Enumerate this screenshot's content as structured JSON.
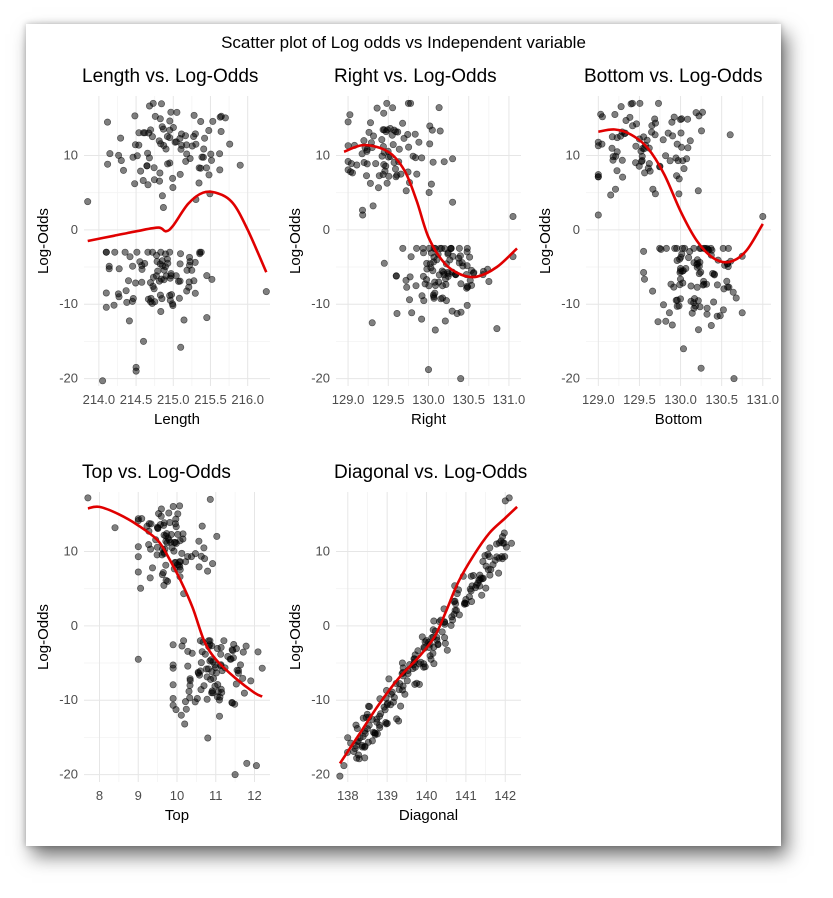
{
  "figure": {
    "title": "Scatter plot of Log odds vs Independent variable"
  },
  "chart_data": [
    {
      "type": "scatter",
      "title": "Length vs. Log-Odds",
      "xlabel": "Length",
      "ylabel": "Log-Odds",
      "xlim": [
        213.8,
        216.3
      ],
      "ylim": [
        -21,
        18
      ],
      "xticks": [
        214.0,
        214.5,
        215.0,
        215.5,
        216.0
      ],
      "xtick_labels": [
        "214.0",
        "214.5",
        "215.0",
        "215.5",
        "216.0"
      ],
      "yticks": [
        -20,
        -10,
        0,
        10
      ],
      "ytick_labels": [
        "-20",
        "-10",
        "0",
        "10"
      ],
      "smooth": [
        [
          213.85,
          -1.5
        ],
        [
          214.2,
          -0.8
        ],
        [
          214.5,
          -0.2
        ],
        [
          214.8,
          0.3
        ],
        [
          214.9,
          -0.2
        ],
        [
          215.0,
          0.6
        ],
        [
          215.2,
          3.5
        ],
        [
          215.4,
          5.0
        ],
        [
          215.6,
          4.9
        ],
        [
          215.8,
          3.6
        ],
        [
          216.0,
          0.0
        ],
        [
          216.25,
          -5.7
        ]
      ],
      "points": {
        "upper": {
          "x_range": [
            214.1,
            215.9
          ],
          "y_range": [
            3,
            17
          ],
          "n": 95,
          "x_center": 215.0,
          "y_center": 10.5
        },
        "lower": {
          "x_range": [
            214.1,
            215.7
          ],
          "y_range": [
            -16,
            -3
          ],
          "n": 90,
          "x_center": 214.8,
          "y_center": -6
        },
        "extra": [
          [
            213.85,
            3.8
          ],
          [
            214.05,
            -20.3
          ],
          [
            214.5,
            -18.5
          ],
          [
            214.5,
            -19
          ],
          [
            216.25,
            -8.3
          ],
          [
            215.1,
            -15.8
          ],
          [
            214.6,
            -15
          ],
          [
            215.45,
            -11.8
          ]
        ]
      }
    },
    {
      "type": "scatter",
      "title": "Right vs. Log-Odds",
      "xlabel": "Right",
      "ylabel": "Log-Odds",
      "xlim": [
        128.85,
        131.15
      ],
      "ylim": [
        -21,
        18
      ],
      "xticks": [
        129.0,
        129.5,
        130.0,
        130.5,
        131.0
      ],
      "xtick_labels": [
        "129.0",
        "129.5",
        "130.0",
        "130.5",
        "131.0"
      ],
      "yticks": [
        -20,
        -10,
        0,
        10
      ],
      "ytick_labels": [
        "-20",
        "-10",
        "0",
        "10"
      ],
      "smooth": [
        [
          128.95,
          10.5
        ],
        [
          129.2,
          11.4
        ],
        [
          129.5,
          10.5
        ],
        [
          129.7,
          8.0
        ],
        [
          129.85,
          4.0
        ],
        [
          130.0,
          -1.0
        ],
        [
          130.2,
          -4.5
        ],
        [
          130.4,
          -6.0
        ],
        [
          130.6,
          -6.3
        ],
        [
          130.85,
          -5.0
        ],
        [
          131.1,
          -2.5
        ]
      ],
      "points": {
        "upper": {
          "x_range": [
            129.0,
            130.3
          ],
          "y_range": [
            2,
            17
          ],
          "n": 90,
          "x_center": 129.5,
          "y_center": 10.5
        },
        "lower": {
          "x_range": [
            129.6,
            130.85
          ],
          "y_range": [
            -15,
            -2.5
          ],
          "n": 100,
          "x_center": 130.2,
          "y_center": -6
        },
        "extra": [
          [
            131.05,
            1.8
          ],
          [
            131.05,
            -3.6
          ],
          [
            130.4,
            -20
          ],
          [
            130.0,
            -18.8
          ],
          [
            129.3,
            -12.5
          ],
          [
            129.45,
            -4.5
          ]
        ]
      }
    },
    {
      "type": "scatter",
      "title": "Bottom vs. Log-Odds",
      "xlabel": "Bottom",
      "ylabel": "Log-Odds",
      "xlim": [
        128.85,
        131.1
      ],
      "ylim": [
        -21,
        18
      ],
      "xticks": [
        129.0,
        129.5,
        130.0,
        130.5,
        131.0
      ],
      "xtick_labels": [
        "129.0",
        "129.5",
        "130.0",
        "130.5",
        "131.0"
      ],
      "yticks": [
        -20,
        -10,
        0,
        10
      ],
      "ytick_labels": [
        "-20",
        "-10",
        "0",
        "10"
      ],
      "smooth": [
        [
          129.0,
          13.2
        ],
        [
          129.2,
          13.5
        ],
        [
          129.4,
          12.8
        ],
        [
          129.6,
          11.0
        ],
        [
          129.8,
          7.5
        ],
        [
          130.0,
          2.5
        ],
        [
          130.2,
          -1.5
        ],
        [
          130.4,
          -3.8
        ],
        [
          130.6,
          -4.3
        ],
        [
          130.8,
          -2.8
        ],
        [
          131.0,
          0.8
        ]
      ],
      "points": {
        "upper": {
          "x_range": [
            129.0,
            130.75
          ],
          "y_range": [
            2,
            17
          ],
          "n": 90,
          "x_center": 129.6,
          "y_center": 10.5
        },
        "lower": {
          "x_range": [
            129.55,
            130.75
          ],
          "y_range": [
            -16,
            -2.5
          ],
          "n": 100,
          "x_center": 130.2,
          "y_center": -6
        },
        "extra": [
          [
            129.05,
            15.2
          ],
          [
            130.65,
            -20
          ],
          [
            130.25,
            -18.6
          ],
          [
            131.0,
            1.8
          ],
          [
            129.9,
            -12.8
          ]
        ]
      }
    },
    {
      "type": "scatter",
      "title": "Top vs. Log-Odds",
      "xlabel": "Top",
      "ylabel": "Log-Odds",
      "xlim": [
        7.6,
        12.4
      ],
      "ylim": [
        -21,
        18
      ],
      "xticks": [
        8,
        9,
        10,
        11,
        12
      ],
      "xtick_labels": [
        "8",
        "9",
        "10",
        "11",
        "12"
      ],
      "yticks": [
        -20,
        -10,
        0,
        10
      ],
      "ytick_labels": [
        "-20",
        "-10",
        "0",
        "10"
      ],
      "smooth": [
        [
          7.7,
          15.8
        ],
        [
          8.0,
          16.0
        ],
        [
          8.5,
          15.0
        ],
        [
          9.0,
          13.5
        ],
        [
          9.5,
          11.5
        ],
        [
          9.8,
          9.0
        ],
        [
          10.1,
          6.0
        ],
        [
          10.4,
          2.5
        ],
        [
          10.7,
          -2.0
        ],
        [
          11.0,
          -4.5
        ],
        [
          11.5,
          -7.0
        ],
        [
          12.0,
          -9.0
        ],
        [
          12.2,
          -9.5
        ]
      ],
      "points": {
        "upper": {
          "x_range": [
            9.0,
            11.2
          ],
          "y_range": [
            2,
            17
          ],
          "n": 90,
          "x_center": 9.8,
          "y_center": 10.5
        },
        "lower": {
          "x_range": [
            9.9,
            12.2
          ],
          "y_range": [
            -16,
            -2
          ],
          "n": 95,
          "x_center": 10.9,
          "y_center": -6
        },
        "extra": [
          [
            7.7,
            17.2
          ],
          [
            8.4,
            13.2
          ],
          [
            9.0,
            -4.5
          ],
          [
            11.5,
            -20
          ],
          [
            11.8,
            -18.5
          ],
          [
            12.05,
            -18.8
          ],
          [
            10.2,
            -13.2
          ]
        ]
      }
    },
    {
      "type": "scatter",
      "title": "Diagonal vs. Log-Odds",
      "xlabel": "Diagonal",
      "ylabel": "Log-Odds",
      "xlim": [
        137.7,
        142.4
      ],
      "ylim": [
        -21,
        18
      ],
      "xticks": [
        138,
        139,
        140,
        141,
        142
      ],
      "xtick_labels": [
        "138",
        "139",
        "140",
        "141",
        "142"
      ],
      "yticks": [
        -20,
        -10,
        0,
        10
      ],
      "ytick_labels": [
        "-20",
        "-10",
        "0",
        "10"
      ],
      "smooth": [
        [
          137.8,
          -18.5
        ],
        [
          138.3,
          -14.5
        ],
        [
          138.8,
          -10.5
        ],
        [
          139.3,
          -7.0
        ],
        [
          139.8,
          -4.2
        ],
        [
          140.2,
          -1.5
        ],
        [
          140.5,
          2.0
        ],
        [
          140.8,
          5.8
        ],
        [
          141.2,
          9.5
        ],
        [
          141.6,
          12.5
        ],
        [
          142.0,
          14.5
        ],
        [
          142.3,
          16.0
        ]
      ],
      "points": {
        "linear": {
          "slope": 7.2,
          "intercept_at": [
            140.0,
            -3.5
          ],
          "x_range": [
            137.8,
            142.3
          ],
          "n": 190,
          "noise": 1.6
        },
        "extra": [
          [
            137.8,
            -20.2
          ],
          [
            137.9,
            -18.8
          ],
          [
            142.1,
            17.2
          ],
          [
            142.0,
            16.8
          ]
        ]
      }
    }
  ]
}
